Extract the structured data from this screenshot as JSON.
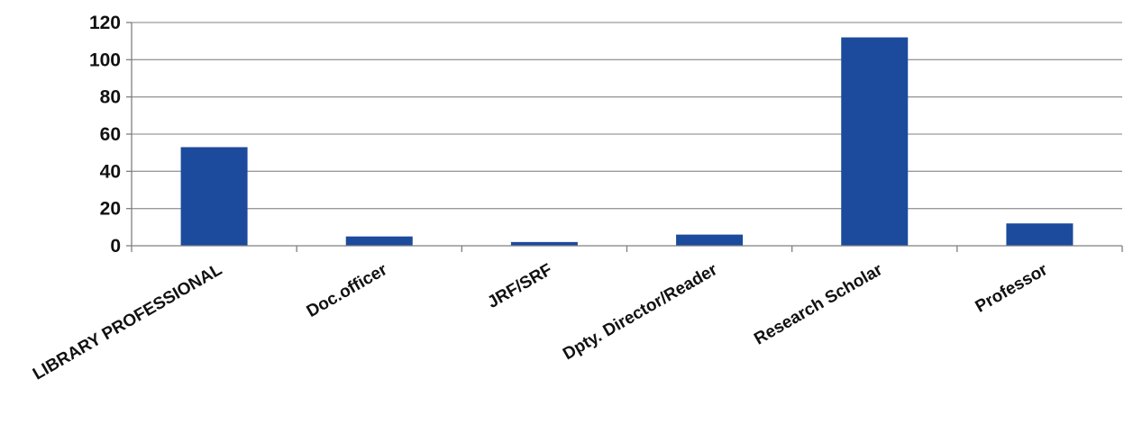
{
  "chart_data": {
    "type": "bar",
    "categories": [
      "LIBRARY PROFESSIONAL",
      "Doc.officer",
      "JRF/SRF",
      "Dpty. Director/Reader",
      "Research Scholar",
      "Professor"
    ],
    "values": [
      53,
      5,
      2,
      6,
      112,
      12
    ],
    "title": "",
    "xlabel": "",
    "ylabel": "",
    "ylim": [
      0,
      120
    ],
    "yticks": [
      "0",
      "20",
      "40",
      "60",
      "80",
      "100",
      "120"
    ],
    "grid": true,
    "legend": "none",
    "bar_color": "#1c4a9c"
  }
}
